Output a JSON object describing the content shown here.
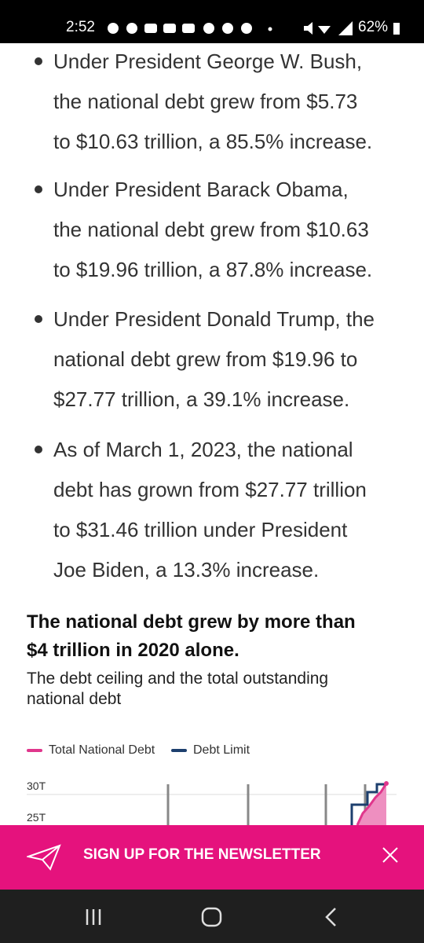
{
  "status_bar": {
    "time": "2:52",
    "battery": "62%"
  },
  "bullets": [
    {
      "lines": [
        "Under President George W. Bush,",
        "the national debt grew from $5.73",
        "to $10.63 trillion, a 85.5% increase."
      ]
    },
    {
      "lines": [
        "Under President Barack Obama,",
        "the national debt grew from $10.63",
        "to $19.96 trillion, a 87.8% increase."
      ]
    },
    {
      "lines": [
        "Under President Donald Trump, the",
        "national debt grew from $19.96 to",
        "$27.77 trillion, a 39.1% increase."
      ]
    },
    {
      "lines": [
        "As of March 1, 2023, the national",
        "debt has grown from $27.77 trillion",
        "to $31.46 trillion under President",
        "Joe Biden, a 13.3% increase."
      ]
    }
  ],
  "chart": {
    "title_lines": [
      "The national debt grew by more than",
      "$4 trillion in 2020 alone."
    ],
    "subtitle_lines": [
      "The debt ceiling and the total outstanding",
      "national debt"
    ],
    "legend": [
      {
        "name": "Total National Debt",
        "color": "#e0368c"
      },
      {
        "name": "Debt Limit",
        "color": "#1d3f6e"
      }
    ],
    "yticks": [
      {
        "value": 30,
        "label": "30T"
      },
      {
        "value": 25,
        "label": "25T"
      }
    ]
  },
  "banner": {
    "text": "SIGN UP FOR THE NEWSLETTER"
  }
}
